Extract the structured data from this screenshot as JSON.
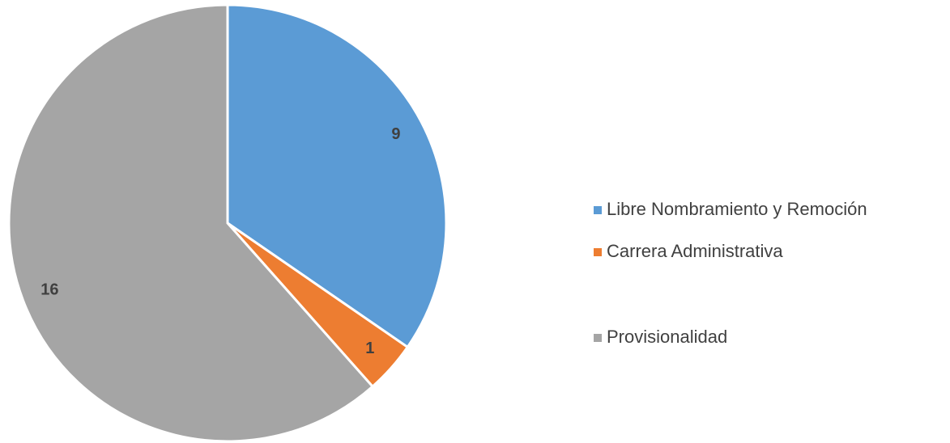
{
  "chart_data": {
    "type": "pie",
    "categories": [
      "Libre Nombramiento y Remoción",
      "Carrera Administrativa",
      "Provisionalidad"
    ],
    "values": [
      9,
      1,
      16
    ],
    "colors": [
      "#5b9bd5",
      "#ed7d31",
      "#a5a5a5"
    ],
    "legend": "right"
  }
}
